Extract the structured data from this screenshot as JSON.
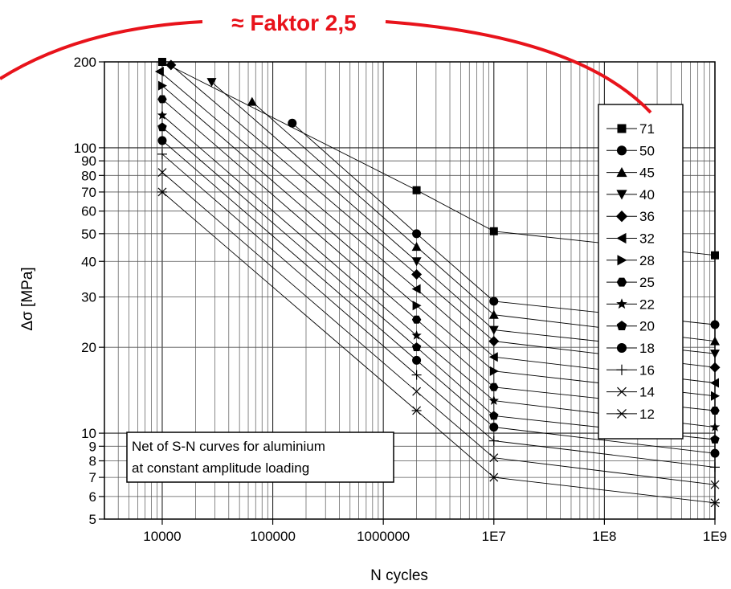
{
  "chart_data": {
    "type": "line",
    "title": "",
    "xlabel": "N cycles",
    "ylabel": "Δσ [MPa]",
    "x_scale": "log",
    "y_scale": "log",
    "xlim": [
      3000,
      1000000000
    ],
    "ylim": [
      5,
      200
    ],
    "grid": true,
    "legend_position": "right",
    "x_ticks": [
      10000,
      100000,
      1000000,
      10000000,
      100000000,
      1000000000
    ],
    "x_tick_labels": [
      "10000",
      "100000",
      "1000000",
      "1E7",
      "1E8",
      "1E9"
    ],
    "y_ticks": [
      5,
      6,
      7,
      8,
      9,
      10,
      20,
      30,
      40,
      50,
      60,
      70,
      80,
      90,
      100,
      200
    ],
    "y_tick_labels": [
      "5",
      "6",
      "7",
      "8",
      "9",
      "10",
      "20",
      "30",
      "40",
      "50",
      "60",
      "70",
      "80",
      "90",
      "100",
      "200"
    ],
    "series": [
      {
        "name": "71",
        "marker": "square",
        "points": [
          [
            10000,
            200
          ],
          [
            2000000,
            71
          ],
          [
            10000000,
            51
          ],
          [
            1000000000,
            42
          ]
        ]
      },
      {
        "name": "50",
        "marker": "circle",
        "points": [
          [
            150000,
            122
          ],
          [
            2000000,
            50
          ],
          [
            10000000,
            29
          ],
          [
            1000000000,
            24
          ]
        ]
      },
      {
        "name": "45",
        "marker": "triangle-up",
        "points": [
          [
            65000,
            145
          ],
          [
            2000000,
            45
          ],
          [
            10000000,
            26
          ],
          [
            1000000000,
            21
          ]
        ]
      },
      {
        "name": "40",
        "marker": "triangle-down",
        "points": [
          [
            28000,
            170
          ],
          [
            2000000,
            40
          ],
          [
            10000000,
            23
          ],
          [
            1000000000,
            19
          ]
        ]
      },
      {
        "name": "36",
        "marker": "diamond",
        "points": [
          [
            12000,
            195
          ],
          [
            2000000,
            36
          ],
          [
            10000000,
            21
          ],
          [
            1000000000,
            17
          ]
        ]
      },
      {
        "name": "32",
        "marker": "triangle-left",
        "points": [
          [
            9500,
            185
          ],
          [
            2000000,
            32
          ],
          [
            10000000,
            18.5
          ],
          [
            1000000000,
            15
          ]
        ]
      },
      {
        "name": "28",
        "marker": "triangle-right",
        "points": [
          [
            10000,
            165
          ],
          [
            2000000,
            28
          ],
          [
            10000000,
            16.5
          ],
          [
            1000000000,
            13.5
          ]
        ]
      },
      {
        "name": "25",
        "marker": "hexagon",
        "points": [
          [
            10000,
            148
          ],
          [
            2000000,
            25
          ],
          [
            10000000,
            14.5
          ],
          [
            1000000000,
            12
          ]
        ]
      },
      {
        "name": "22",
        "marker": "star",
        "points": [
          [
            10000,
            130
          ],
          [
            2000000,
            22
          ],
          [
            10000000,
            13
          ],
          [
            1000000000,
            10.5
          ]
        ]
      },
      {
        "name": "20",
        "marker": "pentagon",
        "points": [
          [
            10000,
            118
          ],
          [
            2000000,
            20
          ],
          [
            10000000,
            11.5
          ],
          [
            1000000000,
            9.5
          ]
        ]
      },
      {
        "name": "18",
        "marker": "circle",
        "points": [
          [
            10000,
            106
          ],
          [
            2000000,
            18
          ],
          [
            10000000,
            10.5
          ],
          [
            1000000000,
            8.5
          ]
        ]
      },
      {
        "name": "16",
        "marker": "plus",
        "points": [
          [
            10000,
            95
          ],
          [
            2000000,
            16
          ],
          [
            10000000,
            9.4
          ],
          [
            1000000000,
            7.6
          ]
        ]
      },
      {
        "name": "14",
        "marker": "x",
        "points": [
          [
            10000,
            82
          ],
          [
            2000000,
            14
          ],
          [
            10000000,
            8.2
          ],
          [
            1000000000,
            6.6
          ]
        ]
      },
      {
        "name": "12",
        "marker": "asterisk",
        "points": [
          [
            10000,
            70
          ],
          [
            2000000,
            12
          ],
          [
            10000000,
            7
          ],
          [
            1000000000,
            5.7
          ]
        ]
      }
    ],
    "note": [
      "Net of S-N curves for aluminium",
      "at constant amplitude loading"
    ],
    "annotation": {
      "text": "≈ Faktor 2,5",
      "color": "#e8131b"
    }
  }
}
